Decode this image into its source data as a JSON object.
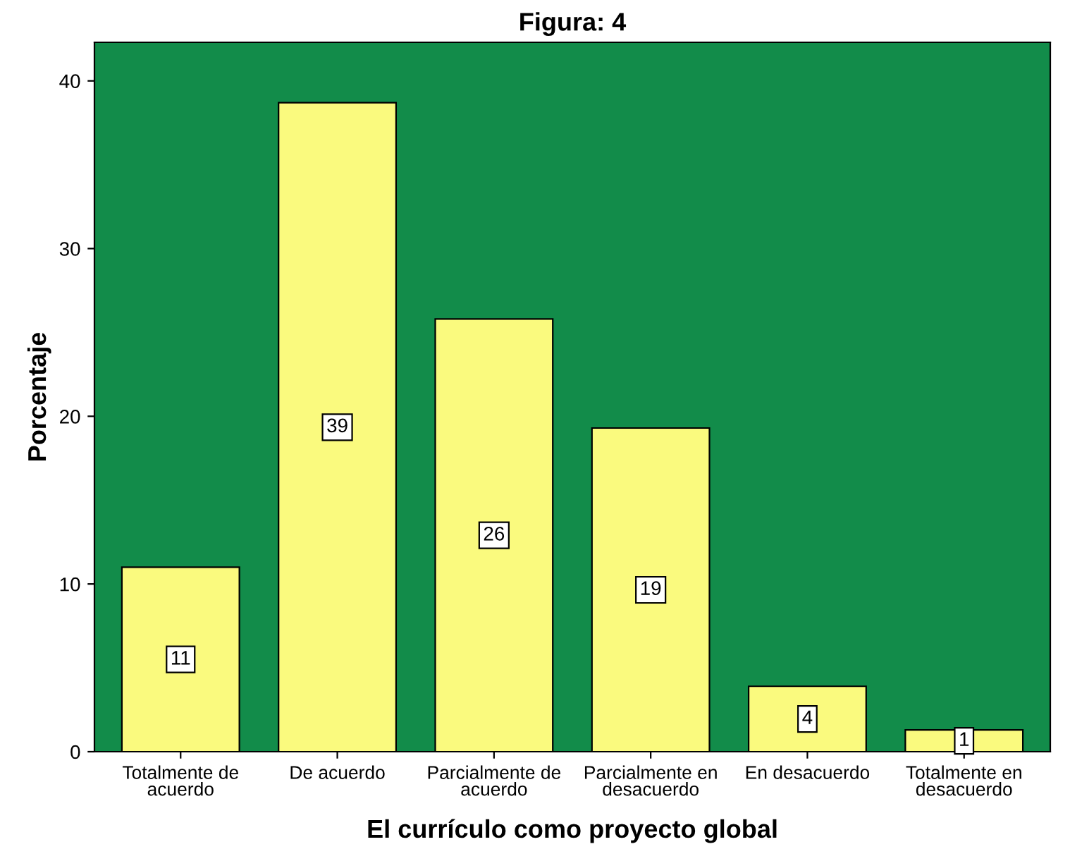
{
  "chart_data": {
    "type": "bar",
    "title": "Figura: 4",
    "xlabel": "El currículo como proyecto global",
    "ylabel": "Porcentaje",
    "categories": [
      "Totalmente de\nacuerdo",
      "De acuerdo",
      "Parcialmente de\nacuerdo",
      "Parcialmente en\ndesacuerdo",
      "En desacuerdo",
      "Totalmente en\ndesacuerdo"
    ],
    "values": [
      11.0,
      38.7,
      25.8,
      19.3,
      3.9,
      1.3
    ],
    "value_labels": [
      "11",
      "39",
      "26",
      "19",
      "4",
      "1"
    ],
    "color": "#fafa7e",
    "ylim": [
      0,
      42.3
    ],
    "yticks": [
      0,
      10,
      20,
      30,
      40
    ],
    "grid": false,
    "legend": false
  }
}
